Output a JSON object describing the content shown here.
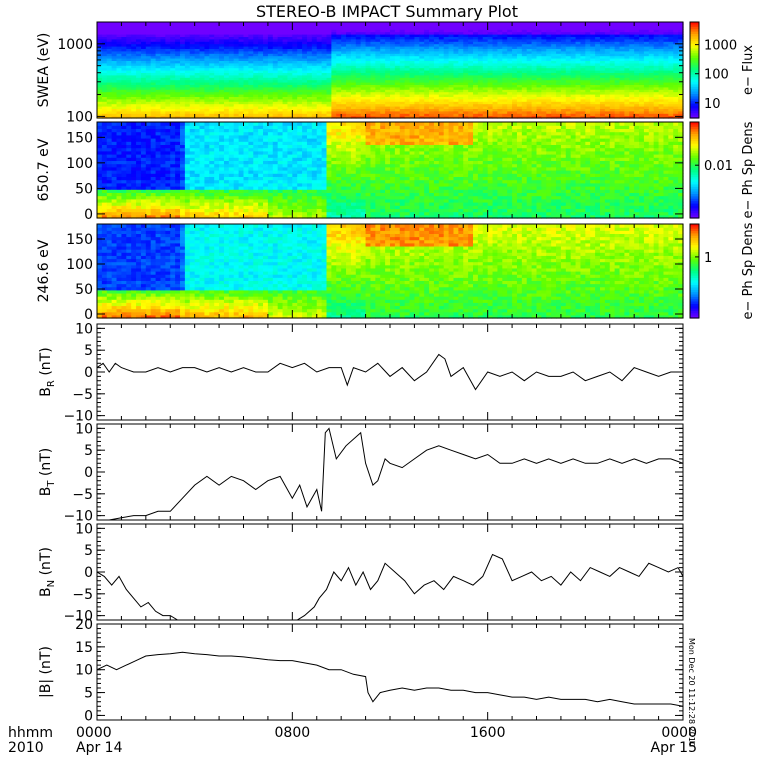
{
  "title": "STEREO-B IMPACT Summary Plot",
  "stamp": "Mon Dec 20 11:12:28 2010",
  "time_axis": {
    "hhmm_label": "hhmm",
    "year_label": "2010",
    "ticks": [
      {
        "hour": 0,
        "label": "0000",
        "date": "Apr 14"
      },
      {
        "hour": 8,
        "label": "0800",
        "date": ""
      },
      {
        "hour": 16,
        "label": "1600",
        "date": ""
      },
      {
        "hour": 24,
        "label": "0000",
        "date": "Apr 15"
      }
    ]
  },
  "colors": {
    "colormap": [
      "#7000ff",
      "#0000ff",
      "#0090ff",
      "#00ffff",
      "#00ff80",
      "#60ff00",
      "#ffff00",
      "#ffa000",
      "#ff0000"
    ]
  },
  "chart_data": [
    {
      "type": "heatmap",
      "id": "swea",
      "ylabel": "SWEA (eV)",
      "yscale": "log",
      "ylim": [
        95,
        2000
      ],
      "yticks": [
        {
          "v": 100,
          "label": "100"
        },
        {
          "v": 1000,
          "label": "1000"
        }
      ],
      "colorbar": {
        "label": "e− Flux",
        "scale": "log",
        "range": [
          3,
          6000
        ],
        "ticks": [
          {
            "v": 10,
            "label": "10"
          },
          {
            "v": 100,
            "label": "100"
          },
          {
            "v": 1000,
            "label": "1000"
          }
        ]
      },
      "xlim": [
        0,
        24
      ]
    },
    {
      "type": "heatmap",
      "id": "pad650",
      "ylabel": "650.7 eV",
      "ylim": [
        -8,
        180
      ],
      "yticks": [
        {
          "v": 0,
          "label": "0"
        },
        {
          "v": 50,
          "label": "50"
        },
        {
          "v": 100,
          "label": "100"
        },
        {
          "v": 150,
          "label": "150"
        }
      ],
      "colorbar": {
        "label": "e− Ph Sp Dens",
        "ticks": [
          {
            "frac": 0.55,
            "label": "0.01"
          }
        ]
      },
      "xlim": [
        0,
        24
      ]
    },
    {
      "type": "heatmap",
      "id": "pad246",
      "ylabel": "246.6 eV",
      "ylim": [
        -8,
        180
      ],
      "yticks": [
        {
          "v": 0,
          "label": "0"
        },
        {
          "v": 50,
          "label": "50"
        },
        {
          "v": 100,
          "label": "100"
        },
        {
          "v": 150,
          "label": "150"
        }
      ],
      "colorbar": {
        "label": "e− Ph Sp Dens",
        "ticks": [
          {
            "frac": 0.65,
            "label": "1"
          }
        ]
      },
      "xlim": [
        0,
        24
      ]
    },
    {
      "type": "line",
      "id": "br",
      "ylabel_main": "B",
      "ylabel_sub": "R",
      "ylabel_unit": " (nT)",
      "ylim": [
        -11,
        11
      ],
      "yticks": [
        {
          "v": 10,
          "label": "10"
        },
        {
          "v": 5,
          "label": "5"
        },
        {
          "v": 0,
          "label": "0"
        },
        {
          "v": -5,
          "label": "−5"
        },
        {
          "v": -10,
          "label": "−10"
        }
      ],
      "xlim": [
        0,
        24
      ],
      "x": [
        0,
        0.25,
        0.5,
        0.75,
        1,
        1.5,
        2,
        2.5,
        3,
        3.5,
        4,
        4.5,
        5,
        5.5,
        6,
        6.5,
        7,
        7.5,
        8,
        8.5,
        9,
        9.5,
        10,
        10.25,
        10.5,
        11,
        11.5,
        12,
        12.5,
        13,
        13.5,
        14,
        14.25,
        14.5,
        15,
        15.5,
        16,
        16.5,
        17,
        17.5,
        18,
        18.5,
        19,
        19.5,
        20,
        20.5,
        21,
        21.5,
        22,
        22.5,
        23,
        23.5,
        24
      ],
      "y": [
        1,
        2,
        0,
        2,
        1,
        0,
        0,
        1,
        0,
        1,
        1,
        0,
        1,
        0,
        1,
        0,
        0,
        2,
        1,
        2,
        0,
        1,
        1,
        -3,
        1,
        0,
        2,
        -1,
        1,
        -2,
        0,
        4,
        3,
        -1,
        1,
        -4,
        0,
        -1,
        0,
        -2,
        0,
        -1,
        -1,
        0,
        -2,
        -1,
        0,
        -2,
        1,
        0,
        -1,
        0,
        0
      ]
    },
    {
      "type": "line",
      "id": "bt",
      "ylabel_main": "B",
      "ylabel_sub": "T",
      "ylabel_unit": " (nT)",
      "ylim": [
        -11,
        11
      ],
      "yticks": [
        {
          "v": 10,
          "label": "10"
        },
        {
          "v": 5,
          "label": "5"
        },
        {
          "v": 0,
          "label": "0"
        },
        {
          "v": -5,
          "label": "−5"
        },
        {
          "v": -10,
          "label": "−10"
        }
      ],
      "xlim": [
        0,
        24
      ],
      "x": [
        0,
        0.5,
        1,
        1.5,
        2,
        2.5,
        3,
        3.5,
        4,
        4.5,
        5,
        5.5,
        6,
        6.5,
        7,
        7.5,
        8,
        8.3,
        8.6,
        9,
        9.2,
        9.35,
        9.5,
        9.8,
        10.2,
        10.8,
        11,
        11.3,
        11.5,
        11.8,
        12,
        12.5,
        13,
        13.5,
        14,
        14.5,
        15,
        15.5,
        16,
        16.5,
        17,
        17.5,
        18,
        18.5,
        19,
        19.5,
        20,
        20.5,
        21,
        21.5,
        22,
        22.5,
        23,
        23.5,
        24
      ],
      "y": [
        -11,
        -11,
        -10.5,
        -10,
        -10,
        -9,
        -9,
        -6,
        -3,
        -1,
        -3,
        -1,
        -2,
        -4,
        -2,
        -1,
        -6,
        -3,
        -8,
        -4,
        -9,
        9,
        10,
        3,
        6,
        9,
        2,
        -3,
        -2,
        3,
        2,
        1,
        3,
        5,
        6,
        5,
        4,
        3,
        4,
        2,
        2,
        3,
        2,
        3,
        2,
        3,
        2,
        2,
        3,
        2,
        3,
        2,
        3,
        3,
        2
      ]
    },
    {
      "type": "line",
      "id": "bn",
      "ylabel_main": "B",
      "ylabel_sub": "N",
      "ylabel_unit": " (nT)",
      "ylim": [
        -11,
        11
      ],
      "yticks": [
        {
          "v": 10,
          "label": "10"
        },
        {
          "v": 5,
          "label": "5"
        },
        {
          "v": 0,
          "label": "0"
        },
        {
          "v": -5,
          "label": "−5"
        },
        {
          "v": -10,
          "label": "−10"
        }
      ],
      "xlim": [
        0,
        24
      ],
      "x": [
        0,
        0.3,
        0.6,
        0.9,
        1.2,
        1.5,
        1.8,
        2.1,
        2.4,
        2.7,
        3,
        3.3,
        8.2,
        8.5,
        8.9,
        9.1,
        9.4,
        9.7,
        10,
        10.3,
        10.6,
        10.9,
        11.2,
        11.5,
        11.8,
        12.2,
        12.6,
        13,
        13.4,
        13.8,
        14.2,
        14.6,
        15,
        15.4,
        15.8,
        16.2,
        16.6,
        17,
        17.4,
        17.8,
        18.2,
        18.6,
        19,
        19.4,
        19.8,
        20.2,
        20.6,
        21,
        21.4,
        21.8,
        22.2,
        22.6,
        23,
        23.4,
        23.8,
        24
      ],
      "y": [
        0,
        -1,
        -3,
        -1,
        -4,
        -6,
        -8,
        -7,
        -9,
        -10,
        -10,
        -11,
        -11,
        -10,
        -8,
        -6,
        -4,
        0,
        -2,
        1,
        -3,
        0,
        -4,
        -2,
        2,
        0,
        -2,
        -5,
        -3,
        -2,
        -4,
        -1,
        -2,
        -3,
        -1,
        4,
        3,
        -2,
        -1,
        0,
        -2,
        -1,
        -3,
        0,
        -2,
        1,
        0,
        -1,
        1,
        0,
        -1,
        2,
        1,
        0,
        1,
        -1
      ]
    },
    {
      "type": "line",
      "id": "bmag",
      "ylabel_main": "|B|",
      "ylabel_sub": "",
      "ylabel_unit": " (nT)",
      "ylim": [
        -1,
        20
      ],
      "yticks": [
        {
          "v": 20,
          "label": "20"
        },
        {
          "v": 15,
          "label": "15"
        },
        {
          "v": 10,
          "label": "10"
        },
        {
          "v": 5,
          "label": "5"
        },
        {
          "v": 0,
          "label": "0"
        }
      ],
      "xlim": [
        0,
        24
      ],
      "x": [
        0,
        0.4,
        0.8,
        1.2,
        1.6,
        2,
        2.5,
        3,
        3.5,
        4,
        4.5,
        5,
        5.5,
        6,
        6.5,
        7,
        7.5,
        8,
        8.5,
        9,
        9.5,
        10,
        10.5,
        11,
        11.1,
        11.3,
        11.6,
        12,
        12.5,
        13,
        13.5,
        14,
        14.5,
        15,
        15.5,
        16,
        16.5,
        17,
        17.5,
        18,
        18.5,
        19,
        19.5,
        20,
        20.5,
        21,
        21.5,
        22,
        22.5,
        23,
        23.5,
        24
      ],
      "y": [
        10,
        11,
        10,
        11,
        12,
        13,
        13.3,
        13.5,
        13.8,
        13.5,
        13.3,
        13,
        13,
        12.8,
        12.5,
        12.2,
        12,
        12,
        11.5,
        11,
        10,
        10,
        9,
        8.5,
        5,
        3,
        5,
        5.5,
        6,
        5.5,
        6,
        6,
        5.5,
        5.5,
        5,
        5,
        4.5,
        4,
        4,
        3.5,
        4,
        3.5,
        3.5,
        3.5,
        3,
        3.5,
        3,
        2.5,
        2.5,
        2.5,
        2.5,
        2
      ]
    }
  ]
}
